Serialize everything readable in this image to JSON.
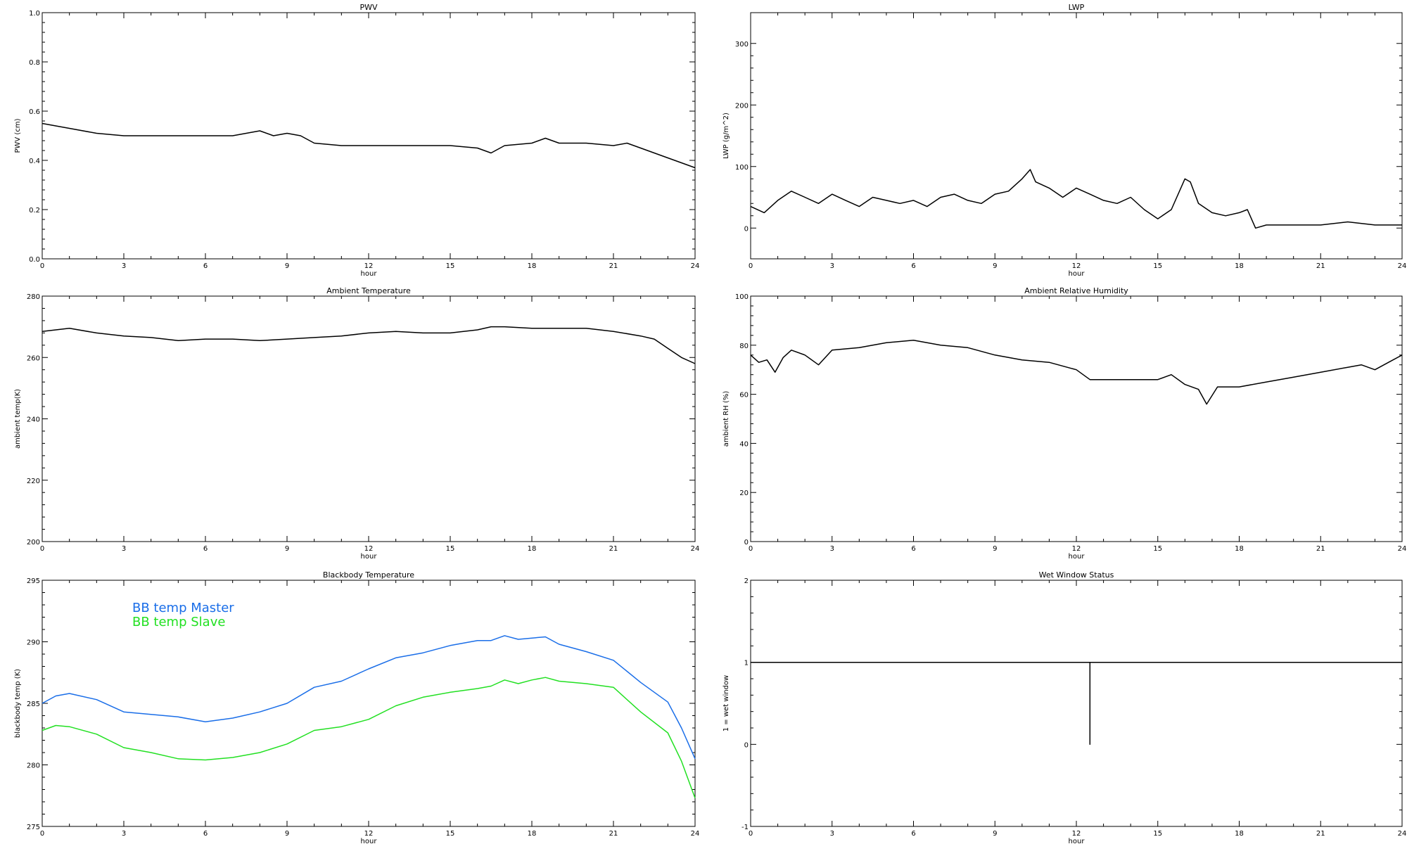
{
  "chart_data": [
    {
      "id": "pwv",
      "type": "line",
      "title": "PWV",
      "xlabel": "hour",
      "ylabel": "PWV (cm)",
      "xlim": [
        0,
        24
      ],
      "ylim": [
        0.0,
        1.0
      ],
      "xticks": [
        0,
        3,
        6,
        9,
        12,
        15,
        18,
        21,
        24
      ],
      "yticks": [
        "0.0",
        "0.2",
        "0.4",
        "0.6",
        "0.8",
        "1.0"
      ],
      "grid": false,
      "series": [
        {
          "color": "#000000",
          "x": [
            0,
            0.5,
            1,
            2,
            3,
            4,
            5,
            6,
            7,
            8,
            8.5,
            9,
            9.5,
            10,
            11,
            12,
            13,
            14,
            15,
            16,
            16.5,
            17,
            18,
            18.5,
            19,
            20,
            21,
            21.5,
            22,
            22.5,
            23,
            23.5,
            24
          ],
          "y": [
            0.55,
            0.54,
            0.53,
            0.51,
            0.5,
            0.5,
            0.5,
            0.5,
            0.5,
            0.52,
            0.5,
            0.51,
            0.5,
            0.47,
            0.46,
            0.46,
            0.46,
            0.46,
            0.46,
            0.45,
            0.43,
            0.46,
            0.47,
            0.49,
            0.47,
            0.47,
            0.46,
            0.47,
            0.45,
            0.43,
            0.41,
            0.39,
            0.37
          ]
        }
      ]
    },
    {
      "id": "lwp",
      "type": "line",
      "title": "LWP",
      "xlabel": "hour",
      "ylabel": "LWP (g/m^2)",
      "xlim": [
        0,
        24
      ],
      "ylim": [
        -50,
        350
      ],
      "xticks": [
        0,
        3,
        6,
        9,
        12,
        15,
        18,
        21,
        24
      ],
      "yticks": [
        "0",
        "100",
        "200",
        "300"
      ],
      "grid": false,
      "series": [
        {
          "color": "#000000",
          "x": [
            0,
            0.5,
            1,
            1.5,
            2,
            2.5,
            3,
            3.5,
            4,
            4.5,
            5,
            5.5,
            6,
            6.5,
            7,
            7.5,
            8,
            8.5,
            9,
            9.5,
            10,
            10.3,
            10.5,
            11,
            11.5,
            12,
            12.5,
            13,
            13.5,
            14,
            14.5,
            15,
            15.5,
            16,
            16.2,
            16.5,
            17,
            17.5,
            18,
            18.3,
            18.6,
            19,
            20,
            21,
            22,
            23,
            24
          ],
          "y": [
            35,
            25,
            45,
            60,
            50,
            40,
            55,
            45,
            35,
            50,
            45,
            40,
            45,
            35,
            50,
            55,
            45,
            40,
            55,
            60,
            80,
            95,
            75,
            65,
            50,
            65,
            55,
            45,
            40,
            50,
            30,
            15,
            30,
            80,
            75,
            40,
            25,
            20,
            25,
            30,
            0,
            5,
            5,
            5,
            10,
            5,
            5
          ]
        }
      ]
    },
    {
      "id": "ambient-temperature",
      "type": "line",
      "title": "Ambient Temperature",
      "xlabel": "hour",
      "ylabel": "ambient temp(K)",
      "xlim": [
        0,
        24
      ],
      "ylim": [
        200,
        280
      ],
      "xticks": [
        0,
        3,
        6,
        9,
        12,
        15,
        18,
        21,
        24
      ],
      "yticks": [
        "200",
        "220",
        "240",
        "260",
        "280"
      ],
      "grid": false,
      "series": [
        {
          "color": "#000000",
          "x": [
            0,
            0.5,
            1,
            2,
            3,
            4,
            5,
            6,
            7,
            8,
            9,
            10,
            11,
            12,
            13,
            14,
            15,
            16,
            16.5,
            17,
            18,
            19,
            20,
            21,
            22,
            22.5,
            23,
            23.5,
            24
          ],
          "y": [
            268.5,
            269,
            269.5,
            268,
            267,
            266.5,
            265.5,
            266,
            266,
            265.5,
            266,
            266.5,
            267,
            268,
            268.5,
            268,
            268,
            269,
            270,
            270,
            269.5,
            269.5,
            269.5,
            268.5,
            267,
            266,
            263,
            260,
            258
          ]
        }
      ]
    },
    {
      "id": "ambient-relative-humidity",
      "type": "line",
      "title": "Ambient Relative Humidity",
      "xlabel": "hour",
      "ylabel": "ambient RH (%)",
      "xlim": [
        0,
        24
      ],
      "ylim": [
        0,
        100
      ],
      "xticks": [
        0,
        3,
        6,
        9,
        12,
        15,
        18,
        21,
        24
      ],
      "yticks": [
        "0",
        "20",
        "40",
        "60",
        "80",
        "100"
      ],
      "grid": false,
      "series": [
        {
          "color": "#000000",
          "x": [
            0,
            0.3,
            0.6,
            0.9,
            1.2,
            1.5,
            2,
            2.5,
            3,
            4,
            5,
            6,
            7,
            8,
            9,
            10,
            11,
            12,
            12.5,
            13,
            14,
            15,
            15.5,
            16,
            16.5,
            16.8,
            17.2,
            18,
            19,
            20,
            21,
            22,
            22.5,
            23,
            23.5,
            24
          ],
          "y": [
            76,
            73,
            74,
            69,
            75,
            78,
            76,
            72,
            78,
            79,
            81,
            82,
            80,
            79,
            76,
            74,
            73,
            70,
            66,
            66,
            66,
            66,
            68,
            64,
            62,
            56,
            63,
            63,
            65,
            67,
            69,
            71,
            72,
            70,
            73,
            76
          ]
        }
      ]
    },
    {
      "id": "blackbody-temperature",
      "type": "line",
      "title": "Blackbody Temperature",
      "xlabel": "hour",
      "ylabel": "blackbody temp (K)",
      "xlim": [
        0,
        24
      ],
      "ylim": [
        275,
        295
      ],
      "xticks": [
        0,
        3,
        6,
        9,
        12,
        15,
        18,
        21,
        24
      ],
      "yticks": [
        "275",
        "280",
        "285",
        "290",
        "295"
      ],
      "legend": "top-left",
      "grid": false,
      "series": [
        {
          "name": "BB temp Master",
          "color": "#1a6ee8",
          "x": [
            0,
            0.5,
            1,
            2,
            3,
            4,
            5,
            6,
            7,
            8,
            9,
            10,
            11,
            12,
            13,
            14,
            15,
            16,
            16.5,
            17,
            17.5,
            18,
            18.5,
            19,
            20,
            21,
            22,
            23,
            23.5,
            24
          ],
          "y": [
            285,
            285.6,
            285.8,
            285.3,
            284.3,
            284.1,
            283.9,
            283.5,
            283.8,
            284.3,
            285,
            286.3,
            286.8,
            287.8,
            288.7,
            289.1,
            289.7,
            290.1,
            290.1,
            290.5,
            290.2,
            290.3,
            290.4,
            289.8,
            289.2,
            288.5,
            286.7,
            285.1,
            283,
            280.5
          ]
        },
        {
          "name": "BB temp Slave",
          "color": "#22e022",
          "x": [
            0,
            0.5,
            1,
            2,
            3,
            4,
            5,
            6,
            7,
            8,
            9,
            10,
            11,
            12,
            13,
            14,
            15,
            16,
            16.5,
            17,
            17.5,
            18,
            18.5,
            19,
            20,
            21,
            22,
            23,
            23.5,
            24
          ],
          "y": [
            282.8,
            283.2,
            283.1,
            282.5,
            281.4,
            281,
            280.5,
            280.4,
            280.6,
            281,
            281.7,
            282.8,
            283.1,
            283.7,
            284.8,
            285.5,
            285.9,
            286.2,
            286.4,
            286.9,
            286.6,
            286.9,
            287.1,
            286.8,
            286.6,
            286.3,
            284.3,
            282.6,
            280.3,
            277.3
          ]
        }
      ]
    },
    {
      "id": "wet-window-status",
      "type": "line",
      "title": "Wet Window Status",
      "xlabel": "hour",
      "ylabel": "1 = wet window",
      "xlim": [
        0,
        24
      ],
      "ylim": [
        -1,
        2
      ],
      "xticks": [
        0,
        3,
        6,
        9,
        12,
        15,
        18,
        21,
        24
      ],
      "yticks": [
        "-1",
        "0",
        "1",
        "2"
      ],
      "grid": false,
      "series": [
        {
          "color": "#000000",
          "x": [
            0,
            12.5,
            12.5,
            12.5,
            12.5,
            24
          ],
          "y": [
            1,
            1,
            0,
            0,
            1,
            1
          ]
        }
      ]
    }
  ]
}
